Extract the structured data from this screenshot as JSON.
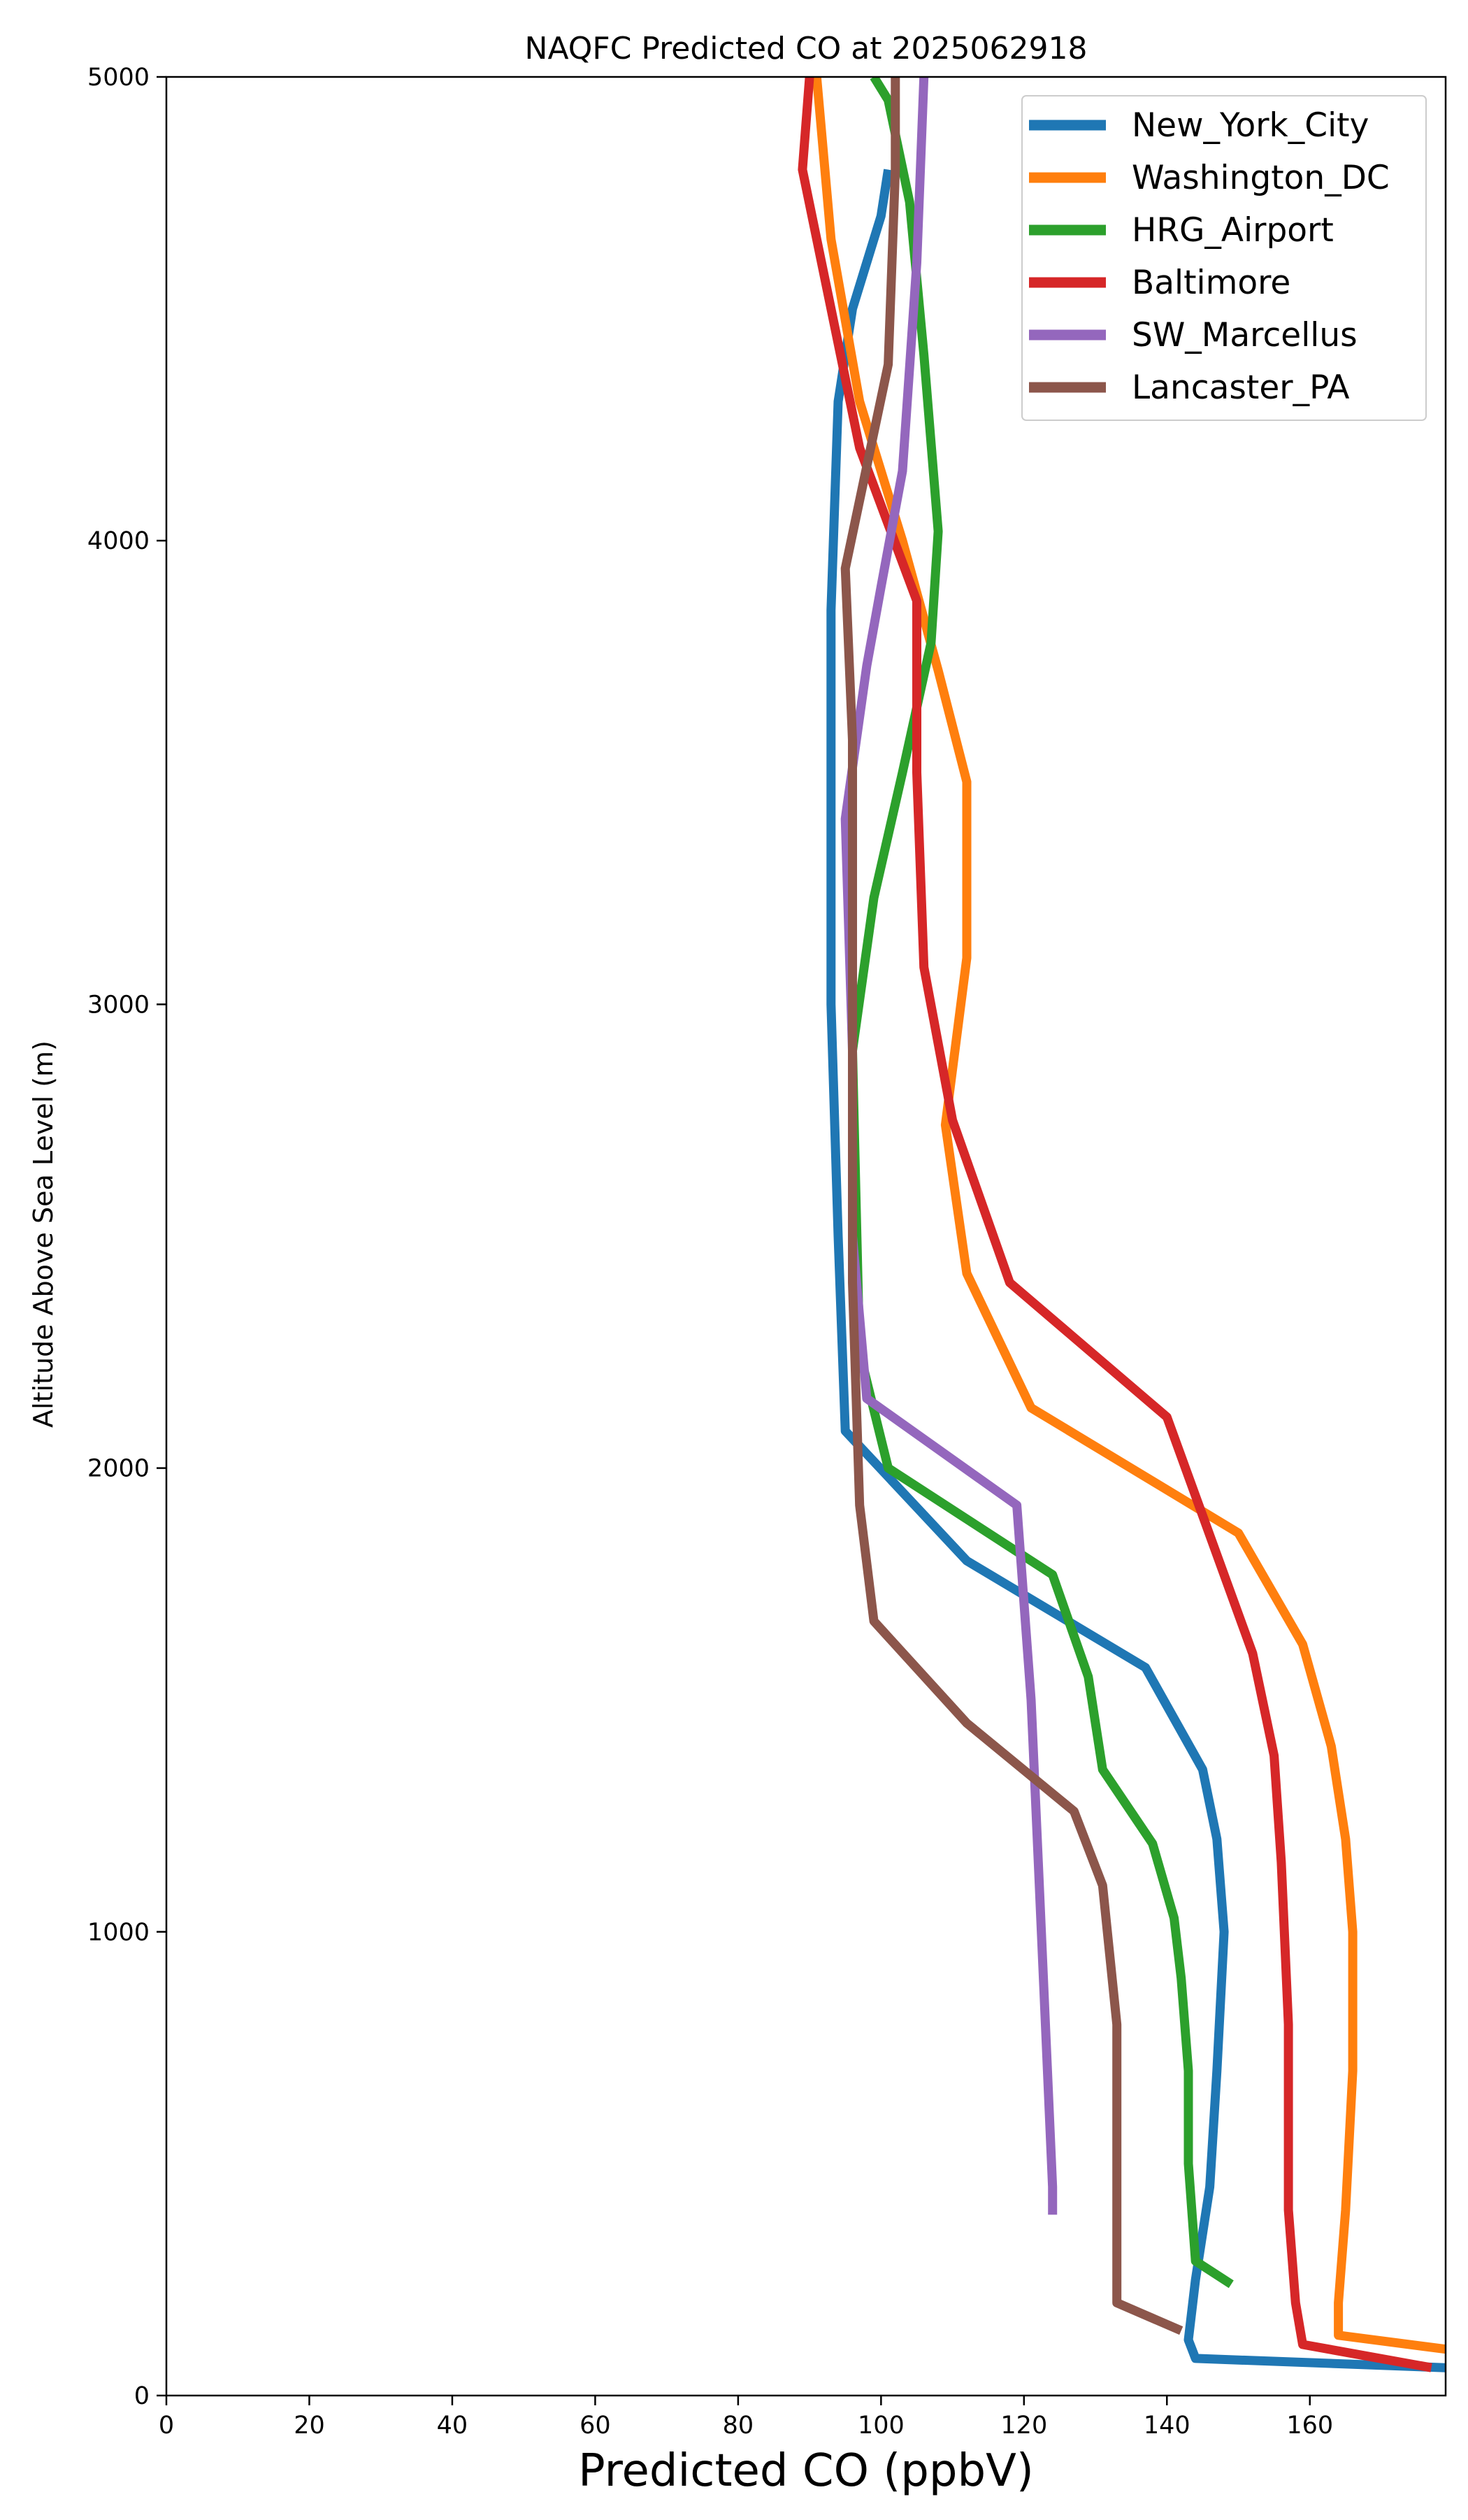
{
  "chart_data": {
    "type": "line",
    "title": "NAQFC Predicted CO at 2025062918",
    "xlabel": "Predicted CO (ppbV)",
    "ylabel": "Altitude Above Sea Level (m)",
    "xlim": [
      0,
      179
    ],
    "ylim": [
      0,
      5000
    ],
    "x_ticks": [
      "0",
      "20",
      "40",
      "60",
      "80",
      "100",
      "120",
      "140",
      "160"
    ],
    "y_ticks": [
      "0",
      "1000",
      "2000",
      "3000",
      "4000",
      "5000"
    ],
    "grid": false,
    "legend_position": "top-right",
    "series": [
      {
        "name": "New_York_City",
        "color": "#1f77b4",
        "points": [
          [
            179,
            60
          ],
          [
            144,
            80
          ],
          [
            143,
            120
          ],
          [
            144,
            250
          ],
          [
            146,
            450
          ],
          [
            147,
            700
          ],
          [
            148,
            1000
          ],
          [
            147,
            1200
          ],
          [
            145,
            1350
          ],
          [
            137,
            1570
          ],
          [
            112,
            1800
          ],
          [
            95,
            2080
          ],
          [
            94,
            2500
          ],
          [
            93,
            3000
          ],
          [
            93,
            3500
          ],
          [
            93,
            3850
          ],
          [
            94,
            4300
          ],
          [
            96,
            4500
          ],
          [
            100,
            4700
          ],
          [
            101,
            4800
          ]
        ]
      },
      {
        "name": "Washington_DC",
        "color": "#ff7f0e",
        "points": [
          [
            179,
            100
          ],
          [
            164,
            130
          ],
          [
            164,
            200
          ],
          [
            165,
            400
          ],
          [
            166,
            700
          ],
          [
            166,
            1000
          ],
          [
            165,
            1200
          ],
          [
            163,
            1400
          ],
          [
            159,
            1620
          ],
          [
            150,
            1860
          ],
          [
            121,
            2130
          ],
          [
            112,
            2420
          ],
          [
            109,
            2740
          ],
          [
            112,
            3100
          ],
          [
            112,
            3480
          ],
          [
            108,
            3720
          ],
          [
            103,
            4000
          ],
          [
            97,
            4300
          ],
          [
            93,
            4650
          ],
          [
            91,
            5000
          ]
        ]
      },
      {
        "name": "HRG_Airport",
        "color": "#2ca02c",
        "points": [
          [
            149,
            240
          ],
          [
            144,
            290
          ],
          [
            143,
            500
          ],
          [
            143,
            700
          ],
          [
            142,
            900
          ],
          [
            141,
            1030
          ],
          [
            138,
            1190
          ],
          [
            131,
            1350
          ],
          [
            129,
            1550
          ],
          [
            124,
            1770
          ],
          [
            101,
            2000
          ],
          [
            97,
            2250
          ],
          [
            96,
            2900
          ],
          [
            99,
            3230
          ],
          [
            103,
            3500
          ],
          [
            107,
            3780
          ],
          [
            108,
            4020
          ],
          [
            106,
            4400
          ],
          [
            104,
            4730
          ],
          [
            101,
            4950
          ],
          [
            99,
            5000
          ]
        ]
      },
      {
        "name": "Baltimore",
        "color": "#d62728",
        "points": [
          [
            177,
            60
          ],
          [
            159,
            110
          ],
          [
            158,
            200
          ],
          [
            157,
            400
          ],
          [
            157,
            800
          ],
          [
            156,
            1150
          ],
          [
            155,
            1380
          ],
          [
            152,
            1600
          ],
          [
            140,
            2110
          ],
          [
            118,
            2400
          ],
          [
            110,
            2750
          ],
          [
            106,
            3080
          ],
          [
            105,
            3500
          ],
          [
            105,
            3870
          ],
          [
            97,
            4200
          ],
          [
            89,
            4800
          ],
          [
            90,
            5000
          ]
        ]
      },
      {
        "name": "SW_Marcellus",
        "color": "#9467bd",
        "points": [
          [
            124,
            390
          ],
          [
            124,
            450
          ],
          [
            123,
            800
          ],
          [
            122,
            1150
          ],
          [
            121,
            1500
          ],
          [
            119,
            1920
          ],
          [
            98,
            2150
          ],
          [
            96,
            2500
          ],
          [
            96,
            2900
          ],
          [
            95,
            3400
          ],
          [
            98,
            3730
          ],
          [
            100,
            3900
          ],
          [
            103,
            4150
          ],
          [
            105,
            4600
          ],
          [
            106,
            5000
          ]
        ]
      },
      {
        "name": "Lancaster_PA",
        "color": "#8c564b",
        "points": [
          [
            142,
            140
          ],
          [
            133,
            200
          ],
          [
            133,
            500
          ],
          [
            133,
            800
          ],
          [
            132,
            950
          ],
          [
            131,
            1100
          ],
          [
            127,
            1260
          ],
          [
            112,
            1450
          ],
          [
            99,
            1670
          ],
          [
            97,
            1920
          ],
          [
            96,
            2400
          ],
          [
            96,
            3000
          ],
          [
            96,
            3570
          ],
          [
            95,
            3940
          ],
          [
            101,
            4380
          ],
          [
            102,
            4800
          ],
          [
            102,
            5000
          ]
        ]
      }
    ]
  }
}
